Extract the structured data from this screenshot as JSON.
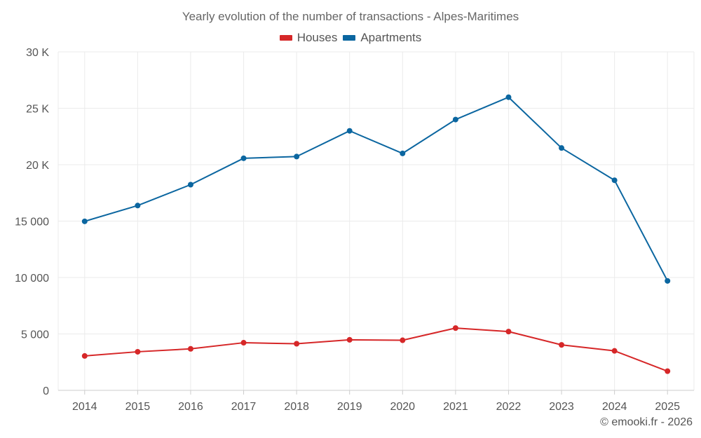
{
  "chart_data": {
    "type": "line",
    "title": "Yearly evolution of the number of transactions - Alpes-Maritimes",
    "xlabel": "",
    "ylabel": "",
    "categories": [
      "2014",
      "2015",
      "2016",
      "2017",
      "2018",
      "2019",
      "2020",
      "2021",
      "2022",
      "2023",
      "2024",
      "2025"
    ],
    "ylim": [
      0,
      30000
    ],
    "yticks": [
      0,
      5000,
      10000,
      15000,
      20000,
      25000,
      30000
    ],
    "ytick_labels": [
      "0",
      "5 000",
      "10 000",
      "15 000",
      "20 K",
      "25 K",
      "30 K"
    ],
    "grid": true,
    "legend_position": "top-center",
    "series": [
      {
        "name": "Houses",
        "color": "#d62728",
        "values": [
          3050,
          3420,
          3680,
          4220,
          4130,
          4480,
          4440,
          5520,
          5210,
          4030,
          3500,
          1700
        ]
      },
      {
        "name": "Apartments",
        "color": "#0b66a0",
        "values": [
          14980,
          16380,
          18230,
          20570,
          20720,
          23000,
          21000,
          24000,
          25980,
          21480,
          18620,
          9700
        ]
      }
    ]
  },
  "credit": "© emooki.fr - 2026"
}
